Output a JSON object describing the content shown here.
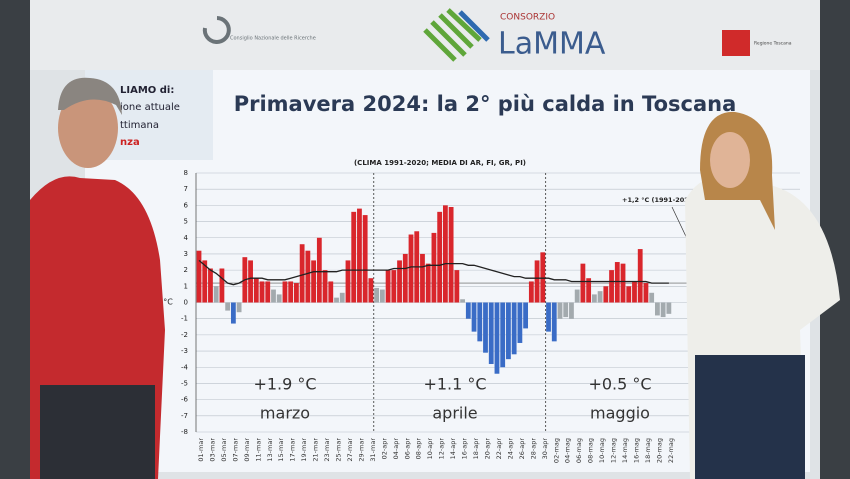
{
  "header": {
    "cnr": "Consiglio Nazionale delle Ricerche",
    "consorzio": "CONSORZIO",
    "lamma": "LaMMA",
    "regione": "Regione Toscana"
  },
  "side_panel": [
    "LIAMO di:",
    "ione attuale",
    "ttimana",
    "nza"
  ],
  "chart_data": {
    "type": "bar",
    "title": "Primavera 2024: la 2° più calda in Toscana",
    "subtitle": "(CLIMA 1991-2020; MEDIA DI AR, FI, GR, PI)",
    "y_label": "°C",
    "annotation": "+1,2 °C (1991-2020)",
    "reference_line": 1.2,
    "ylim": [
      -8,
      8
    ],
    "yticks": [
      -8,
      -7,
      -6,
      -5,
      -4,
      -3,
      -2,
      -1,
      0,
      1,
      2,
      3,
      4,
      5,
      6,
      7,
      8
    ],
    "grid": true,
    "months": [
      {
        "anomaly": "+1.9 °C",
        "name": "marzo"
      },
      {
        "anomaly": "+1.1 °C",
        "name": "aprile"
      },
      {
        "anomaly": "+0.5 °C",
        "name": "maggio"
      }
    ],
    "categories": [
      "01-mar",
      null,
      "03-mar",
      null,
      "05-mar",
      null,
      "07-mar",
      null,
      "09-mar",
      null,
      "11-mar",
      null,
      "13-mar",
      null,
      "15-mar",
      null,
      "17-mar",
      null,
      "19-mar",
      null,
      "21-mar",
      null,
      "23-mar",
      null,
      "25-mar",
      null,
      "27-mar",
      null,
      "29-mar",
      null,
      "31-mar",
      null,
      "02-apr",
      null,
      "04-apr",
      null,
      "06-apr",
      null,
      "08-apr",
      null,
      "10-apr",
      null,
      "12-apr",
      null,
      "14-apr",
      null,
      "16-apr",
      null,
      "18-apr",
      null,
      "20-apr",
      null,
      "22-apr",
      null,
      "24-apr",
      null,
      "26-apr",
      null,
      "28-apr",
      null,
      "30-apr",
      null,
      "02-mag",
      null,
      "04-mag",
      null,
      "06-mag",
      null,
      "08-mag",
      null,
      "10-mag",
      null,
      "12-mag",
      null,
      "14-mag",
      null,
      "16-mag",
      null,
      "18-mag",
      null,
      "20-mag",
      null,
      "22-mag"
    ],
    "values": [
      3.2,
      2.6,
      2.1,
      1.0,
      2.1,
      -0.5,
      -1.3,
      -0.6,
      2.8,
      2.6,
      1.5,
      1.3,
      1.3,
      0.8,
      0.5,
      1.3,
      1.3,
      1.2,
      3.6,
      3.2,
      2.6,
      4.0,
      2.0,
      1.3,
      0.3,
      0.6,
      2.6,
      5.6,
      5.8,
      5.4,
      1.5,
      0.9,
      0.8,
      2.0,
      2.0,
      2.6,
      3.0,
      4.2,
      4.4,
      3.0,
      2.4,
      4.3,
      5.6,
      6.0,
      5.9,
      2.0,
      0.2,
      -1.0,
      -1.8,
      -2.4,
      -3.1,
      -3.8,
      -4.4,
      -4.0,
      -3.5,
      -3.2,
      -2.5,
      -1.6,
      1.3,
      2.6,
      3.1,
      -1.8,
      -2.4,
      -1.0,
      -0.9,
      -1.0,
      0.8,
      2.4,
      1.5,
      0.5,
      0.7,
      1.0,
      2.0,
      2.5,
      2.4,
      1.0,
      1.3,
      3.3,
      1.2,
      0.6,
      -0.8,
      -0.9,
      -0.7
    ],
    "colors": [
      "#d9262c",
      "#d9262c",
      "#d9262c",
      "#a3aaae",
      "#d9262c",
      "#a3aaae",
      "#3a6cc6",
      "#a3aaae",
      "#d9262c",
      "#d9262c",
      "#d9262c",
      "#d9262c",
      "#d9262c",
      "#a3aaae",
      "#a3aaae",
      "#d9262c",
      "#d9262c",
      "#d9262c",
      "#d9262c",
      "#d9262c",
      "#d9262c",
      "#d9262c",
      "#d9262c",
      "#d9262c",
      "#a3aaae",
      "#a3aaae",
      "#d9262c",
      "#d9262c",
      "#d9262c",
      "#d9262c",
      "#d9262c",
      "#a3aaae",
      "#a3aaae",
      "#d9262c",
      "#d9262c",
      "#d9262c",
      "#d9262c",
      "#d9262c",
      "#d9262c",
      "#d9262c",
      "#d9262c",
      "#d9262c",
      "#d9262c",
      "#d9262c",
      "#d9262c",
      "#d9262c",
      "#a3aaae",
      "#3a6cc6",
      "#3a6cc6",
      "#3a6cc6",
      "#3a6cc6",
      "#3a6cc6",
      "#3a6cc6",
      "#3a6cc6",
      "#3a6cc6",
      "#3a6cc6",
      "#3a6cc6",
      "#3a6cc6",
      "#d9262c",
      "#d9262c",
      "#d9262c",
      "#3a6cc6",
      "#3a6cc6",
      "#a3aaae",
      "#a3aaae",
      "#a3aaae",
      "#a3aaae",
      "#d9262c",
      "#d9262c",
      "#a3aaae",
      "#a3aaae",
      "#d9262c",
      "#d9262c",
      "#d9262c",
      "#d9262c",
      "#d9262c",
      "#d9262c",
      "#d9262c",
      "#d9262c",
      "#a3aaae",
      "#a3aaae",
      "#a3aaae",
      "#a3aaae"
    ],
    "line": {
      "color": "#222222",
      "values": [
        2.6,
        2.3,
        2.0,
        1.8,
        1.5,
        1.2,
        1.1,
        1.2,
        1.4,
        1.5,
        1.5,
        1.5,
        1.4,
        1.4,
        1.4,
        1.4,
        1.5,
        1.6,
        1.7,
        1.8,
        1.9,
        1.9,
        1.9,
        1.9,
        1.9,
        2.0,
        2.0,
        2.0,
        2.0,
        2.0,
        2.0,
        2.0,
        2.0,
        2.0,
        2.1,
        2.1,
        2.1,
        2.2,
        2.2,
        2.2,
        2.3,
        2.3,
        2.3,
        2.4,
        2.4,
        2.4,
        2.4,
        2.3,
        2.3,
        2.2,
        2.1,
        2.0,
        1.9,
        1.8,
        1.7,
        1.6,
        1.6,
        1.5,
        1.5,
        1.5,
        1.5,
        1.5,
        1.4,
        1.4,
        1.4,
        1.3,
        1.3,
        1.3,
        1.3,
        1.3,
        1.3,
        1.3,
        1.3,
        1.3,
        1.3,
        1.3,
        1.3,
        1.3,
        1.3,
        1.2,
        1.2,
        1.2,
        1.2
      ]
    }
  }
}
